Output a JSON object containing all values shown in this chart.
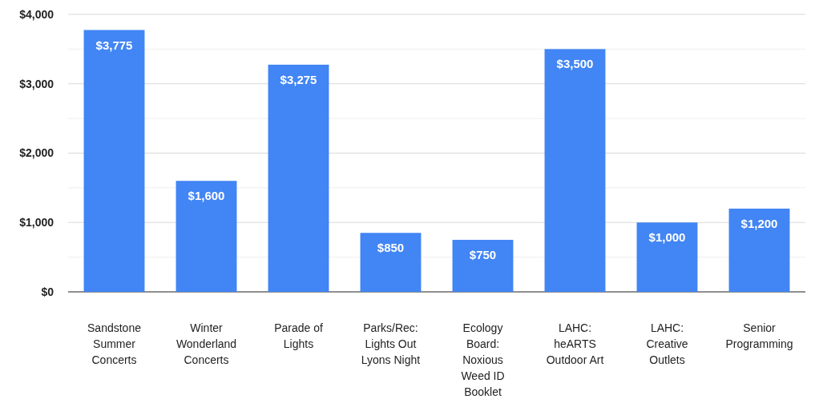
{
  "chart_data": {
    "type": "bar",
    "categories": [
      "Sandstone Summer Concerts",
      "Winter Wonderland Concerts",
      "Parade of Lights",
      "Parks/Rec: Lights Out Lyons Night",
      "Ecology Board: Noxious Weed ID Booklet",
      "LAHC: heARTS Outdoor Art",
      "LAHC: Creative Outlets",
      "Senior Programming"
    ],
    "values": [
      3775,
      1600,
      3275,
      850,
      750,
      3500,
      1000,
      1200
    ],
    "value_labels": [
      "$3,775",
      "$1,600",
      "$3,275",
      "$850",
      "$750",
      "$3,500",
      "$1,000",
      "$1,200"
    ],
    "color": "#4285f4",
    "ylim": [
      0,
      4000
    ],
    "yticks": [
      {
        "value": 0,
        "label": "$0"
      },
      {
        "value": 500,
        "label": null
      },
      {
        "value": 1000,
        "label": "$1,000"
      },
      {
        "value": 1500,
        "label": null
      },
      {
        "value": 2000,
        "label": "$2,000"
      },
      {
        "value": 2500,
        "label": null
      },
      {
        "value": 3000,
        "label": "$3,000"
      },
      {
        "value": 3500,
        "label": null
      },
      {
        "value": 4000,
        "label": "$4,000"
      }
    ],
    "grid": true
  }
}
